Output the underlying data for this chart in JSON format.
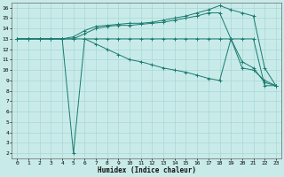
{
  "xlabel": "Humidex (Indice chaleur)",
  "ylabel": "",
  "background_color": "#c8ebe9",
  "grid_color": "#a8d8d5",
  "line_color": "#1a7a70",
  "xlim": [
    -0.5,
    23.5
  ],
  "ylim": [
    1.5,
    16.5
  ],
  "xtick_labels": [
    "0",
    "1",
    "2",
    "3",
    "4",
    "5",
    "6",
    "7",
    "8",
    "9",
    "10",
    "11",
    "12",
    "13",
    "14",
    "15",
    "16",
    "17",
    "18",
    "19",
    "20",
    "21",
    "22",
    "23"
  ],
  "xtick_positions": [
    0,
    1,
    2,
    3,
    4,
    5,
    6,
    7,
    8,
    9,
    10,
    11,
    12,
    13,
    14,
    15,
    16,
    17,
    18,
    19,
    20,
    21,
    22,
    23
  ],
  "ytick_positions": [
    2,
    3,
    4,
    5,
    6,
    7,
    8,
    9,
    10,
    11,
    12,
    13,
    14,
    15,
    16
  ],
  "series": [
    {
      "x": [
        0,
        1,
        2,
        3,
        4,
        5,
        6,
        7,
        8,
        9,
        10,
        11,
        12,
        13,
        14,
        15,
        16,
        17,
        18,
        19,
        20,
        21,
        22,
        23
      ],
      "y": [
        13.0,
        13.0,
        13.0,
        13.0,
        13.0,
        13.0,
        13.0,
        13.0,
        13.0,
        13.0,
        13.0,
        13.0,
        13.0,
        13.0,
        13.0,
        13.0,
        13.0,
        13.0,
        13.0,
        13.0,
        13.0,
        13.0,
        8.5,
        8.5
      ]
    },
    {
      "x": [
        0,
        1,
        2,
        3,
        4,
        5,
        6,
        7,
        8,
        9,
        10,
        11,
        12,
        13,
        14,
        15,
        16,
        17,
        18,
        19,
        20,
        21,
        22,
        23
      ],
      "y": [
        13.0,
        13.0,
        13.0,
        13.0,
        13.0,
        2.0,
        13.0,
        12.5,
        12.0,
        11.5,
        11.0,
        10.8,
        10.5,
        10.2,
        10.0,
        9.8,
        9.5,
        9.2,
        9.0,
        13.0,
        10.2,
        10.0,
        9.0,
        8.5
      ]
    },
    {
      "x": [
        0,
        1,
        2,
        3,
        4,
        5,
        6,
        7,
        8,
        9,
        10,
        11,
        12,
        13,
        14,
        15,
        16,
        17,
        18,
        19,
        20,
        21,
        22,
        23
      ],
      "y": [
        13.0,
        13.0,
        13.0,
        13.0,
        13.0,
        13.2,
        13.8,
        14.2,
        14.3,
        14.4,
        14.5,
        14.5,
        14.6,
        14.8,
        15.0,
        15.2,
        15.5,
        15.8,
        16.2,
        15.8,
        15.5,
        15.2,
        10.2,
        8.5
      ]
    },
    {
      "x": [
        0,
        1,
        2,
        3,
        4,
        5,
        6,
        7,
        8,
        9,
        10,
        11,
        12,
        13,
        14,
        15,
        16,
        17,
        18,
        19,
        20,
        21,
        22,
        23
      ],
      "y": [
        13.0,
        13.0,
        13.0,
        13.0,
        13.0,
        13.0,
        13.5,
        14.0,
        14.2,
        14.3,
        14.3,
        14.4,
        14.5,
        14.6,
        14.8,
        15.0,
        15.2,
        15.5,
        15.5,
        13.0,
        10.8,
        10.2,
        8.8,
        8.5
      ]
    }
  ]
}
